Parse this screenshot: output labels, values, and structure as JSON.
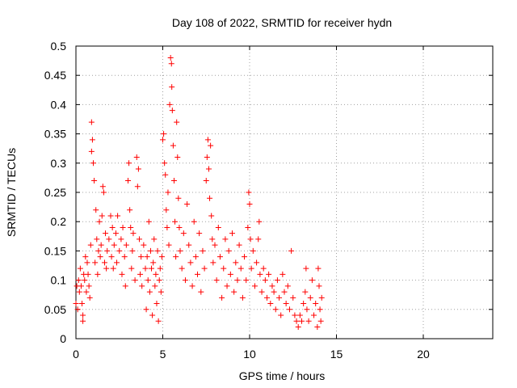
{
  "chart_data": {
    "type": "scatter",
    "title": "Day 108 of 2022, SRMTID for receiver hydn",
    "xlabel": "GPS time / hours",
    "ylabel": "SRMTID / TECUs",
    "xlim": [
      0,
      24
    ],
    "ylim": [
      0,
      0.5
    ],
    "xticks": [
      0,
      5,
      10,
      15,
      20
    ],
    "yticks": [
      0,
      0.05,
      0.1,
      0.15,
      0.2,
      0.25,
      0.3,
      0.35,
      0.4,
      0.45,
      0.5
    ],
    "grid": true,
    "marker": "+",
    "series": [
      {
        "name": "hydn",
        "color": "#ff0000",
        "points": [
          [
            0.0,
            0.06
          ],
          [
            0.05,
            0.09
          ],
          [
            0.1,
            0.05
          ],
          [
            0.15,
            0.1
          ],
          [
            0.2,
            0.08
          ],
          [
            0.25,
            0.12
          ],
          [
            0.3,
            0.09
          ],
          [
            0.35,
            0.06
          ],
          [
            0.4,
            0.04
          ],
          [
            0.4,
            0.03
          ],
          [
            0.45,
            0.11
          ],
          [
            0.5,
            0.1
          ],
          [
            0.55,
            0.14
          ],
          [
            0.6,
            0.08
          ],
          [
            0.65,
            0.13
          ],
          [
            0.7,
            0.11
          ],
          [
            0.75,
            0.09
          ],
          [
            0.8,
            0.07
          ],
          [
            0.85,
            0.16
          ],
          [
            0.9,
            0.37
          ],
          [
            0.9,
            0.32
          ],
          [
            0.95,
            0.34
          ],
          [
            1.0,
            0.3
          ],
          [
            1.05,
            0.27
          ],
          [
            1.1,
            0.13
          ],
          [
            1.15,
            0.22
          ],
          [
            1.2,
            0.17
          ],
          [
            1.25,
            0.11
          ],
          [
            1.3,
            0.15
          ],
          [
            1.35,
            0.2
          ],
          [
            1.4,
            0.14
          ],
          [
            1.45,
            0.16
          ],
          [
            1.5,
            0.21
          ],
          [
            1.55,
            0.26
          ],
          [
            1.6,
            0.25
          ],
          [
            1.65,
            0.13
          ],
          [
            1.7,
            0.18
          ],
          [
            1.75,
            0.12
          ],
          [
            1.8,
            0.15
          ],
          [
            1.9,
            0.17
          ],
          [
            2.0,
            0.21
          ],
          [
            2.05,
            0.14
          ],
          [
            2.1,
            0.19
          ],
          [
            2.15,
            0.12
          ],
          [
            2.2,
            0.16
          ],
          [
            2.3,
            0.18
          ],
          [
            2.35,
            0.13
          ],
          [
            2.4,
            0.21
          ],
          [
            2.5,
            0.15
          ],
          [
            2.6,
            0.17
          ],
          [
            2.65,
            0.11
          ],
          [
            2.7,
            0.19
          ],
          [
            2.8,
            0.14
          ],
          [
            2.85,
            0.09
          ],
          [
            2.9,
            0.16
          ],
          [
            3.0,
            0.27
          ],
          [
            3.05,
            0.3
          ],
          [
            3.1,
            0.22
          ],
          [
            3.15,
            0.19
          ],
          [
            3.2,
            0.12
          ],
          [
            3.25,
            0.15
          ],
          [
            3.3,
            0.18
          ],
          [
            3.4,
            0.1
          ],
          [
            3.5,
            0.31
          ],
          [
            3.55,
            0.26
          ],
          [
            3.6,
            0.29
          ],
          [
            3.65,
            0.17
          ],
          [
            3.7,
            0.11
          ],
          [
            3.75,
            0.14
          ],
          [
            3.8,
            0.09
          ],
          [
            3.9,
            0.16
          ],
          [
            4.0,
            0.12
          ],
          [
            4.05,
            0.05
          ],
          [
            4.1,
            0.14
          ],
          [
            4.15,
            0.1
          ],
          [
            4.2,
            0.2
          ],
          [
            4.25,
            0.08
          ],
          [
            4.3,
            0.15
          ],
          [
            4.35,
            0.12
          ],
          [
            4.4,
            0.04
          ],
          [
            4.45,
            0.13
          ],
          [
            4.5,
            0.17
          ],
          [
            4.55,
            0.09
          ],
          [
            4.6,
            0.11
          ],
          [
            4.65,
            0.06
          ],
          [
            4.7,
            0.15
          ],
          [
            4.75,
            0.03
          ],
          [
            4.8,
            0.1
          ],
          [
            4.85,
            0.12
          ],
          [
            4.9,
            0.08
          ],
          [
            4.95,
            0.14
          ],
          [
            5.0,
            0.34
          ],
          [
            5.05,
            0.35
          ],
          [
            5.1,
            0.3
          ],
          [
            5.15,
            0.28
          ],
          [
            5.2,
            0.22
          ],
          [
            5.25,
            0.19
          ],
          [
            5.3,
            0.25
          ],
          [
            5.35,
            0.16
          ],
          [
            5.4,
            0.4
          ],
          [
            5.45,
            0.48
          ],
          [
            5.5,
            0.47
          ],
          [
            5.52,
            0.43
          ],
          [
            5.55,
            0.39
          ],
          [
            5.6,
            0.33
          ],
          [
            5.65,
            0.27
          ],
          [
            5.7,
            0.2
          ],
          [
            5.75,
            0.14
          ],
          [
            5.8,
            0.37
          ],
          [
            5.85,
            0.31
          ],
          [
            5.9,
            0.24
          ],
          [
            5.95,
            0.19
          ],
          [
            6.0,
            0.15
          ],
          [
            6.1,
            0.12
          ],
          [
            6.2,
            0.18
          ],
          [
            6.3,
            0.1
          ],
          [
            6.4,
            0.23
          ],
          [
            6.5,
            0.16
          ],
          [
            6.6,
            0.13
          ],
          [
            6.7,
            0.09
          ],
          [
            6.8,
            0.2
          ],
          [
            6.9,
            0.14
          ],
          [
            7.0,
            0.11
          ],
          [
            7.1,
            0.18
          ],
          [
            7.2,
            0.08
          ],
          [
            7.3,
            0.15
          ],
          [
            7.4,
            0.12
          ],
          [
            7.5,
            0.27
          ],
          [
            7.55,
            0.31
          ],
          [
            7.6,
            0.34
          ],
          [
            7.65,
            0.29
          ],
          [
            7.7,
            0.24
          ],
          [
            7.75,
            0.33
          ],
          [
            7.8,
            0.21
          ],
          [
            7.85,
            0.17
          ],
          [
            7.9,
            0.13
          ],
          [
            8.0,
            0.16
          ],
          [
            8.1,
            0.1
          ],
          [
            8.2,
            0.19
          ],
          [
            8.3,
            0.14
          ],
          [
            8.4,
            0.07
          ],
          [
            8.5,
            0.12
          ],
          [
            8.6,
            0.17
          ],
          [
            8.7,
            0.09
          ],
          [
            8.8,
            0.15
          ],
          [
            8.9,
            0.11
          ],
          [
            9.0,
            0.18
          ],
          [
            9.1,
            0.08
          ],
          [
            9.2,
            0.13
          ],
          [
            9.3,
            0.1
          ],
          [
            9.4,
            0.16
          ],
          [
            9.5,
            0.12
          ],
          [
            9.6,
            0.07
          ],
          [
            9.7,
            0.14
          ],
          [
            9.8,
            0.1
          ],
          [
            9.9,
            0.19
          ],
          [
            9.95,
            0.25
          ],
          [
            10.0,
            0.23
          ],
          [
            10.05,
            0.17
          ],
          [
            10.1,
            0.12
          ],
          [
            10.2,
            0.15
          ],
          [
            10.3,
            0.09
          ],
          [
            10.4,
            0.13
          ],
          [
            10.5,
            0.17
          ],
          [
            10.55,
            0.2
          ],
          [
            10.6,
            0.11
          ],
          [
            10.7,
            0.08
          ],
          [
            10.8,
            0.12
          ],
          [
            10.9,
            0.1
          ],
          [
            11.0,
            0.07
          ],
          [
            11.1,
            0.11
          ],
          [
            11.2,
            0.06
          ],
          [
            11.3,
            0.09
          ],
          [
            11.4,
            0.08
          ],
          [
            11.5,
            0.05
          ],
          [
            11.6,
            0.1
          ],
          [
            11.7,
            0.07
          ],
          [
            11.8,
            0.04
          ],
          [
            11.9,
            0.11
          ],
          [
            12.0,
            0.08
          ],
          [
            12.1,
            0.06
          ],
          [
            12.2,
            0.09
          ],
          [
            12.3,
            0.05
          ],
          [
            12.4,
            0.15
          ],
          [
            12.5,
            0.07
          ],
          [
            12.6,
            0.04
          ],
          [
            12.7,
            0.03
          ],
          [
            12.8,
            0.02
          ],
          [
            12.9,
            0.04
          ],
          [
            13.0,
            0.03
          ],
          [
            13.1,
            0.06
          ],
          [
            13.2,
            0.08
          ],
          [
            13.25,
            0.12
          ],
          [
            13.3,
            0.05
          ],
          [
            13.4,
            0.03
          ],
          [
            13.5,
            0.07
          ],
          [
            13.6,
            0.1
          ],
          [
            13.7,
            0.04
          ],
          [
            13.8,
            0.06
          ],
          [
            13.9,
            0.02
          ],
          [
            13.95,
            0.12
          ],
          [
            14.0,
            0.09
          ],
          [
            14.05,
            0.05
          ],
          [
            14.1,
            0.03
          ],
          [
            14.15,
            0.07
          ]
        ]
      }
    ]
  }
}
